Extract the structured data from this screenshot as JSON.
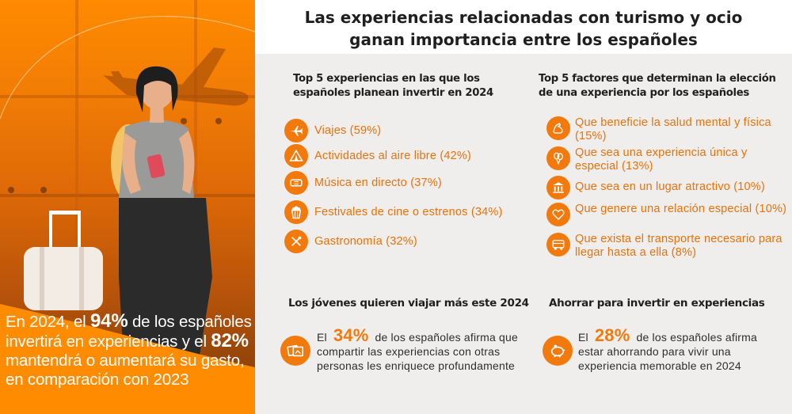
{
  "title": {
    "line1": "Las experiencias relacionadas con turismo y ocio",
    "line2": "ganan importancia entre los españoles"
  },
  "left_stat": {
    "part1": "En 2024, el ",
    "pct1": "94%",
    "part2": " de los españoles invertirá en experiencias y el ",
    "pct2": "82%",
    "part3": " mantendrá o aumentará su gasto, en comparación con 2023"
  },
  "experiences": {
    "title": "Top 5 experiencias en las que los españoles planean invertir en 2024",
    "items": [
      {
        "label": "Viajes (59%)",
        "icon": "plane-icon"
      },
      {
        "label": "Actividades al aire libre (42%)",
        "icon": "tent-icon"
      },
      {
        "label": "Música en directo (37%)",
        "icon": "ticket-icon"
      },
      {
        "label": "Festivales de cine o estrenos (34%)",
        "icon": "popcorn-icon"
      },
      {
        "label": "Gastronomía (32%)",
        "icon": "cutlery-icon"
      }
    ]
  },
  "factors": {
    "title": "Top 5 factores que determinan la elección de una experiencia por los españoles",
    "items": [
      {
        "label": "Que beneficie la salud mental y física (15%)",
        "icon": "muscle-icon"
      },
      {
        "label": "Que sea una experiencia única y especial (13%)",
        "icon": "balloons-icon"
      },
      {
        "label": "Que sea en un lugar atractivo (10%)",
        "icon": "monument-icon"
      },
      {
        "label": "Que genere una relación especial (10%)",
        "icon": "hearts-icon"
      },
      {
        "label": "Que exista el transporte necesario para llegar hasta a ella (8%)",
        "icon": "bus-icon"
      }
    ]
  },
  "young": {
    "title": "Los jóvenes quieren viajar más este 2024",
    "pre": "El",
    "pct": "34%",
    "post": "de los españoles afirma que compartir las experiencias con otras personas les enriquece profundamente",
    "icon": "photos-icon"
  },
  "saving": {
    "title": "Ahorrar para invertir en experiencias",
    "pre": "El",
    "pct": "28%",
    "post": "de los españoles afirma estar ahorrando para vivir una experiencia memorable en 2024",
    "icon": "piggy-bank-icon"
  },
  "colors": {
    "accent": "#f27a0c",
    "panel_bg": "#f0eeec",
    "text": "#2b2b2b"
  }
}
